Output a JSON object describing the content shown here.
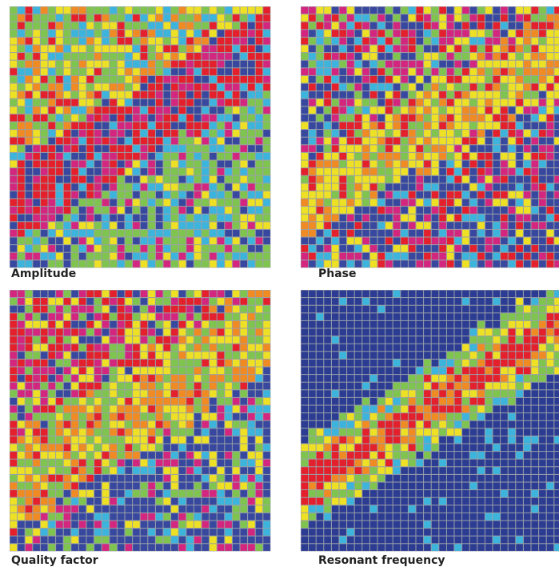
{
  "panels": [
    {
      "label": "Amplitude"
    },
    {
      "label": "Phase"
    },
    {
      "label": "Quality factor"
    },
    {
      "label": "Resonant frequency"
    }
  ]
}
